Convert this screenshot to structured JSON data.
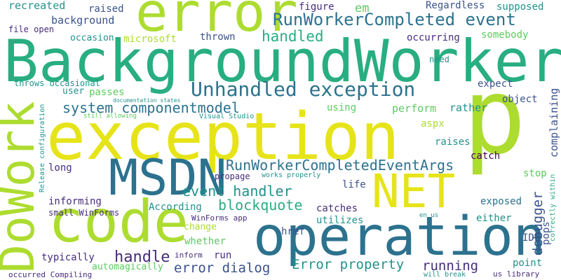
{
  "colors": {
    "dark_purple": "#440154",
    "indigo": "#472d7b",
    "blue": "#3b528b",
    "slate": "#2c728e",
    "teal": "#21918c",
    "sea": "#28ae80",
    "green": "#5ec962",
    "lime": "#addc30",
    "yellow": "#e6e419"
  },
  "words": [
    {
      "text": "BackgroundWorker",
      "color": "sea"
    },
    {
      "text": "exception",
      "color": "yellow"
    },
    {
      "text": "error",
      "color": "lime"
    },
    {
      "text": "p",
      "color": "lime"
    },
    {
      "text": "operation",
      "color": "slate"
    },
    {
      "text": "code",
      "color": "lime"
    },
    {
      "text": "MSDN",
      "color": "slate"
    },
    {
      "text": "NET",
      "color": "yellow"
    },
    {
      "text": "DoWork",
      "color": "lime"
    },
    {
      "text": "Unhandled exception",
      "color": "slate"
    },
    {
      "text": "RunWorkerCompleted event",
      "color": "slate"
    },
    {
      "text": "RunWorkerCompletedEventArgs",
      "color": "slate"
    },
    {
      "text": "system componentmodel",
      "color": "slate"
    },
    {
      "text": "event handler",
      "color": "teal"
    },
    {
      "text": "blockquote",
      "color": "sea"
    },
    {
      "text": "handled",
      "color": "sea"
    },
    {
      "text": "handle",
      "color": "indigo"
    },
    {
      "text": "error dialog",
      "color": "blue"
    },
    {
      "text": "Error property",
      "color": "teal"
    },
    {
      "text": "running",
      "color": "indigo"
    },
    {
      "text": "debugger",
      "color": "blue"
    },
    {
      "text": "em",
      "color": "green"
    },
    {
      "text": "background",
      "color": "blue"
    },
    {
      "text": "recreated",
      "color": "teal"
    },
    {
      "text": "raised",
      "color": "blue"
    },
    {
      "text": "figure",
      "color": "indigo"
    },
    {
      "text": "Regardless",
      "color": "blue"
    },
    {
      "text": "supposed",
      "color": "teal"
    },
    {
      "text": "file open",
      "color": "indigo"
    },
    {
      "text": "occasion",
      "color": "teal"
    },
    {
      "text": "microsoft",
      "color": "lime"
    },
    {
      "text": "thrown",
      "color": "blue"
    },
    {
      "text": "occurring",
      "color": "indigo"
    },
    {
      "text": "somebody",
      "color": "green"
    },
    {
      "text": "need",
      "color": "teal"
    },
    {
      "text": "throws occasional",
      "color": "teal"
    },
    {
      "text": "user",
      "color": "teal"
    },
    {
      "text": "passes",
      "color": "green"
    },
    {
      "text": "expect",
      "color": "blue"
    },
    {
      "text": "object",
      "color": "blue"
    },
    {
      "text": "documentation states",
      "color": "teal"
    },
    {
      "text": "still allowing",
      "color": "green"
    },
    {
      "text": "Visual Studio",
      "color": "teal"
    },
    {
      "text": "using",
      "color": "green"
    },
    {
      "text": "perform",
      "color": "green"
    },
    {
      "text": "rather",
      "color": "teal"
    },
    {
      "text": "complaining",
      "color": "blue"
    },
    {
      "text": "aspx",
      "color": "lime"
    },
    {
      "text": "raises",
      "color": "teal"
    },
    {
      "text": "catch",
      "color": "dark_purple"
    },
    {
      "text": "long",
      "color": "indigo"
    },
    {
      "text": "propage",
      "color": "indigo"
    },
    {
      "text": "works properly",
      "color": "teal"
    },
    {
      "text": "life",
      "color": "blue"
    },
    {
      "text": "stop",
      "color": "green"
    },
    {
      "text": "informing",
      "color": "indigo"
    },
    {
      "text": "small WinForms",
      "color": "indigo"
    },
    {
      "text": "According",
      "color": "teal"
    },
    {
      "text": "catches",
      "color": "indigo"
    },
    {
      "text": "utilizes",
      "color": "teal"
    },
    {
      "text": "exposed",
      "color": "slate"
    },
    {
      "text": "either",
      "color": "teal"
    },
    {
      "text": "change",
      "color": "lime"
    },
    {
      "text": "WinForms app",
      "color": "indigo"
    },
    {
      "text": "href",
      "color": "blue"
    },
    {
      "text": "en us",
      "color": "teal"
    },
    {
      "text": "whether",
      "color": "green"
    },
    {
      "text": "IDE",
      "color": "blue"
    },
    {
      "text": "run",
      "color": "indigo"
    },
    {
      "text": "inform",
      "color": "indigo"
    },
    {
      "text": "typically",
      "color": "indigo"
    },
    {
      "text": "automagically",
      "color": "green"
    },
    {
      "text": "point",
      "color": "teal"
    },
    {
      "text": "pops",
      "color": "blue"
    },
    {
      "text": "occurred Compiling",
      "color": "indigo"
    },
    {
      "text": "will break",
      "color": "teal"
    },
    {
      "text": "us library",
      "color": "indigo"
    },
    {
      "text": "Release configuration",
      "color": "teal"
    },
    {
      "text": "correctly within",
      "color": "sea"
    }
  ]
}
